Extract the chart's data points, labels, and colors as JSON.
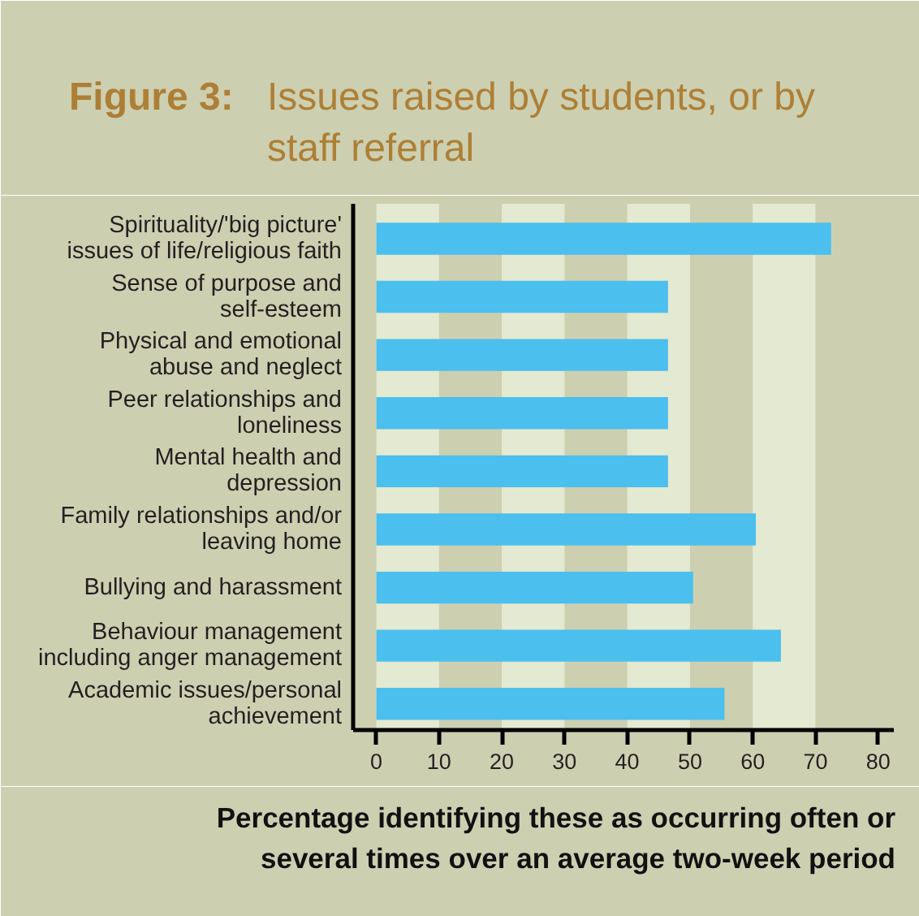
{
  "chart_data": {
    "type": "bar",
    "orientation": "horizontal",
    "title": "Figure 3:",
    "subtitle": "Issues raised by students, or by\nstaff referral",
    "xlabel": "Percentage identifying these as occurring often or\nseveral times over an average two-week period",
    "categories": [
      "Spirituality/'big picture'\nissues of life/religious faith",
      "Sense of purpose and\nself-esteem",
      "Physical and emotional\nabuse and neglect",
      "Peer relationships and\nloneliness",
      "Mental health and\ndepression",
      "Family relationships and/or\nleaving home",
      "Bullying and harassment",
      "Behaviour management\nincluding anger management",
      "Academic issues/personal\nachievement"
    ],
    "values": [
      72.5,
      46.5,
      46.5,
      46.5,
      46.5,
      60.5,
      50.5,
      64.5,
      55.5
    ],
    "color": "#4bbfed",
    "xlim": [
      -3.7,
      82.5
    ],
    "xticks": [
      0,
      10,
      20,
      30,
      40,
      50,
      60,
      70,
      80
    ],
    "bands": [
      {
        "axis": "x",
        "from": 0,
        "to": 10,
        "color": "#e4e9d1"
      },
      {
        "axis": "x",
        "from": 20,
        "to": 30,
        "color": "#e4e9d1"
      },
      {
        "axis": "x",
        "from": 40,
        "to": 50,
        "color": "#e4e9d1"
      },
      {
        "axis": "x",
        "from": 60,
        "to": 70,
        "color": "#e4e9d1"
      }
    ],
    "grid": false
  }
}
